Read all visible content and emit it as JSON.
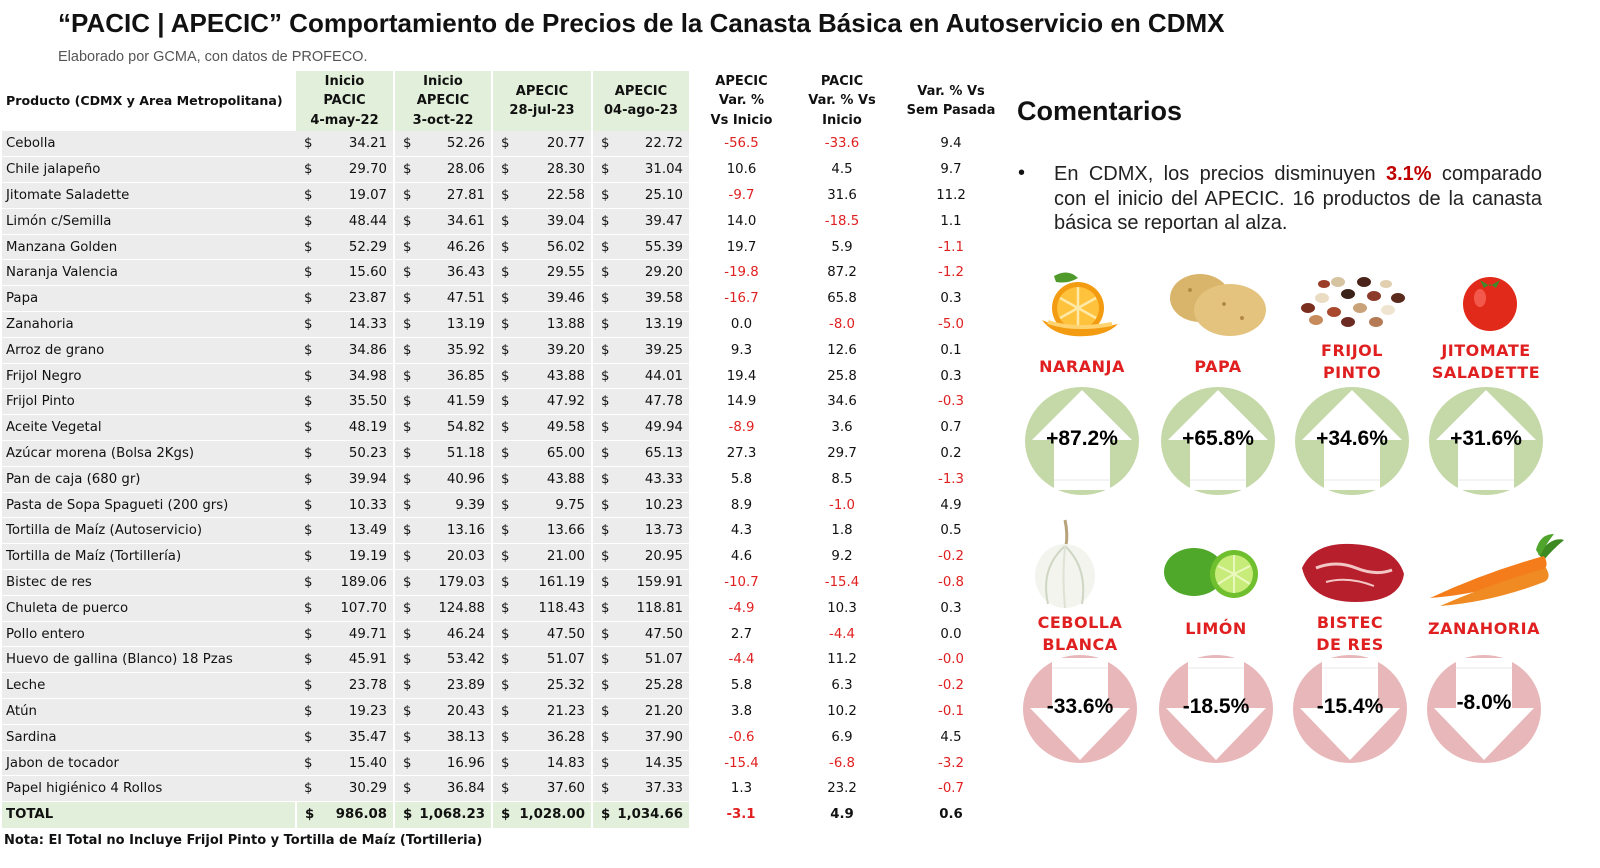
{
  "header": {
    "title": "“PACIC | APECIC” Comportamiento de Precios de la Canasta Básica en Autoservicio en CDMX",
    "subtitle": "Elaborado por GCMA, con datos de PROFECO."
  },
  "table": {
    "columns": {
      "product": "Producto (CDMX y Area Metropolitana)",
      "c1": [
        "Inicio",
        "PACIC",
        "4-may-22"
      ],
      "c2": [
        "Inicio",
        "APECIC",
        "3-oct-22"
      ],
      "c3": [
        "APECIC",
        "28-jul-23"
      ],
      "c4": [
        "APECIC",
        "04-ago-23"
      ],
      "c5": [
        "APECIC",
        "Var. %",
        "Vs  Inicio"
      ],
      "c6": [
        "PACIC",
        "Var. % Vs",
        "Inicio"
      ],
      "c7": [
        "Var. % Vs",
        "Sem Pasada"
      ]
    },
    "currency": "$",
    "rows": [
      {
        "name": "Cebolla",
        "v1": "34.21",
        "v2": "52.26",
        "v3": "20.77",
        "v4": "22.72",
        "p1": "-56.5",
        "p2": "-33.6",
        "p3": "9.4"
      },
      {
        "name": "Chile jalapeño",
        "v1": "29.70",
        "v2": "28.06",
        "v3": "28.30",
        "v4": "31.04",
        "p1": "10.6",
        "p2": "4.5",
        "p3": "9.7"
      },
      {
        "name": "Jitomate Saladette",
        "v1": "19.07",
        "v2": "27.81",
        "v3": "22.58",
        "v4": "25.10",
        "p1": "-9.7",
        "p2": "31.6",
        "p3": "11.2"
      },
      {
        "name": "Limón c/Semilla",
        "v1": "48.44",
        "v2": "34.61",
        "v3": "39.04",
        "v4": "39.47",
        "p1": "14.0",
        "p2": "-18.5",
        "p3": "1.1"
      },
      {
        "name": "Manzana Golden",
        "v1": "52.29",
        "v2": "46.26",
        "v3": "56.02",
        "v4": "55.39",
        "p1": "19.7",
        "p2": "5.9",
        "p3": "-1.1"
      },
      {
        "name": "Naranja Valencia",
        "v1": "15.60",
        "v2": "36.43",
        "v3": "29.55",
        "v4": "29.20",
        "p1": "-19.8",
        "p2": "87.2",
        "p3": "-1.2"
      },
      {
        "name": "Papa",
        "v1": "23.87",
        "v2": "47.51",
        "v3": "39.46",
        "v4": "39.58",
        "p1": "-16.7",
        "p2": "65.8",
        "p3": "0.3"
      },
      {
        "name": "Zanahoria",
        "v1": "14.33",
        "v2": "13.19",
        "v3": "13.88",
        "v4": "13.19",
        "p1": "0.0",
        "p2": "-8.0",
        "p3": "-5.0"
      },
      {
        "name": "Arroz de grano",
        "v1": "34.86",
        "v2": "35.92",
        "v3": "39.20",
        "v4": "39.25",
        "p1": "9.3",
        "p2": "12.6",
        "p3": "0.1"
      },
      {
        "name": "Frijol Negro",
        "v1": "34.98",
        "v2": "36.85",
        "v3": "43.88",
        "v4": "44.01",
        "p1": "19.4",
        "p2": "25.8",
        "p3": "0.3"
      },
      {
        "name": "Frijol Pinto",
        "v1": "35.50",
        "v2": "41.59",
        "v3": "47.92",
        "v4": "47.78",
        "p1": "14.9",
        "p2": "34.6",
        "p3": "-0.3"
      },
      {
        "name": "Aceite Vegetal",
        "v1": "48.19",
        "v2": "54.82",
        "v3": "49.58",
        "v4": "49.94",
        "p1": "-8.9",
        "p2": "3.6",
        "p3": "0.7"
      },
      {
        "name": "Azúcar morena (Bolsa 2Kgs)",
        "v1": "50.23",
        "v2": "51.18",
        "v3": "65.00",
        "v4": "65.13",
        "p1": "27.3",
        "p2": "29.7",
        "p3": "0.2"
      },
      {
        "name": "Pan de caja (680 gr)",
        "v1": "39.94",
        "v2": "40.96",
        "v3": "43.88",
        "v4": "43.33",
        "p1": "5.8",
        "p2": "8.5",
        "p3": "-1.3"
      },
      {
        "name": "Pasta de Sopa Spagueti (200 grs)",
        "v1": "10.33",
        "v2": "9.39",
        "v3": "9.75",
        "v4": "10.23",
        "p1": "8.9",
        "p2": "-1.0",
        "p3": "4.9"
      },
      {
        "name": "Tortilla de Maíz (Autoservicio)",
        "v1": "13.49",
        "v2": "13.16",
        "v3": "13.66",
        "v4": "13.73",
        "p1": "4.3",
        "p2": "1.8",
        "p3": "0.5"
      },
      {
        "name": "Tortilla de Maíz (Tortillería)",
        "v1": "19.19",
        "v2": "20.03",
        "v3": "21.00",
        "v4": "20.95",
        "p1": "4.6",
        "p2": "9.2",
        "p3": "-0.2"
      },
      {
        "name": "Bistec de res",
        "v1": "189.06",
        "v2": "179.03",
        "v3": "161.19",
        "v4": "159.91",
        "p1": "-10.7",
        "p2": "-15.4",
        "p3": "-0.8"
      },
      {
        "name": "Chuleta de puerco",
        "v1": "107.70",
        "v2": "124.88",
        "v3": "118.43",
        "v4": "118.81",
        "p1": "-4.9",
        "p2": "10.3",
        "p3": "0.3"
      },
      {
        "name": "Pollo entero",
        "v1": "49.71",
        "v2": "46.24",
        "v3": "47.50",
        "v4": "47.50",
        "p1": "2.7",
        "p2": "-4.4",
        "p3": "0.0"
      },
      {
        "name": "Huevo de gallina (Blanco) 18 Pzas",
        "v1": "45.91",
        "v2": "53.42",
        "v3": "51.07",
        "v4": "51.07",
        "p1": "-4.4",
        "p2": "11.2",
        "p3": "-0.0"
      },
      {
        "name": "Leche",
        "v1": "23.78",
        "v2": "23.89",
        "v3": "25.32",
        "v4": "25.28",
        "p1": "5.8",
        "p2": "6.3",
        "p3": "-0.2"
      },
      {
        "name": "Atún",
        "v1": "19.23",
        "v2": "20.43",
        "v3": "21.23",
        "v4": "21.20",
        "p1": "3.8",
        "p2": "10.2",
        "p3": "-0.1"
      },
      {
        "name": "Sardina",
        "v1": "35.47",
        "v2": "38.13",
        "v3": "36.28",
        "v4": "37.90",
        "p1": "-0.6",
        "p2": "6.9",
        "p3": "4.5"
      },
      {
        "name": "Jabon de tocador",
        "v1": "15.40",
        "v2": "16.96",
        "v3": "14.83",
        "v4": "14.35",
        "p1": "-15.4",
        "p2": "-6.8",
        "p3": "-3.2"
      },
      {
        "name": "Papel higiénico 4 Rollos",
        "v1": "30.29",
        "v2": "36.84",
        "v3": "37.60",
        "v4": "37.33",
        "p1": "1.3",
        "p2": "23.2",
        "p3": "-0.7"
      }
    ],
    "total": {
      "name": "TOTAL",
      "v1": "986.08",
      "v2": "1,068.23",
      "v3": "1,028.00",
      "v4": "1,034.66",
      "p1": "-3.1",
      "p2": "4.9",
      "p3": "0.6"
    },
    "note": "Nota: El Total no Incluye Frijol Pinto y Tortilla de Maíz (Tortilleria)"
  },
  "comments": {
    "title": "Comentarios",
    "bullet": "•",
    "text_before": "En CDMX, los precios disminuyen ",
    "highlight": "3.1%",
    "text_after": " comparado con el inicio del APECIC. 16 productos de la canasta básica se reportan al alza."
  },
  "colors": {
    "negative": "#e02020",
    "up_circle": "#c5d9a8",
    "down_circle": "#e8b7b9",
    "green_header": "#e2efda",
    "row_gray": "#ececec"
  },
  "highlights": {
    "up": [
      {
        "label": [
          "NARANJA"
        ],
        "value": "+87.2%",
        "icon": "orange-icon"
      },
      {
        "label": [
          "PAPA"
        ],
        "value": "+65.8%",
        "icon": "potato-icon"
      },
      {
        "label": [
          "FRIJOL",
          "PINTO"
        ],
        "value": "+34.6%",
        "icon": "beans-icon"
      },
      {
        "label": [
          "JITOMATE",
          "SALADETTE"
        ],
        "value": "+31.6%",
        "icon": "tomato-icon"
      }
    ],
    "down": [
      {
        "label": [
          "CEBOLLA",
          "BLANCA"
        ],
        "value": "-33.6%",
        "icon": "onion-icon"
      },
      {
        "label": [
          "LIMÓN"
        ],
        "value": "-18.5%",
        "icon": "lime-icon"
      },
      {
        "label": [
          "BISTEC",
          "DE RES"
        ],
        "value": "-15.4%",
        "icon": "steak-icon"
      },
      {
        "label": [
          "ZANAHORIA"
        ],
        "value": "-8.0%",
        "icon": "carrot-icon"
      }
    ]
  }
}
